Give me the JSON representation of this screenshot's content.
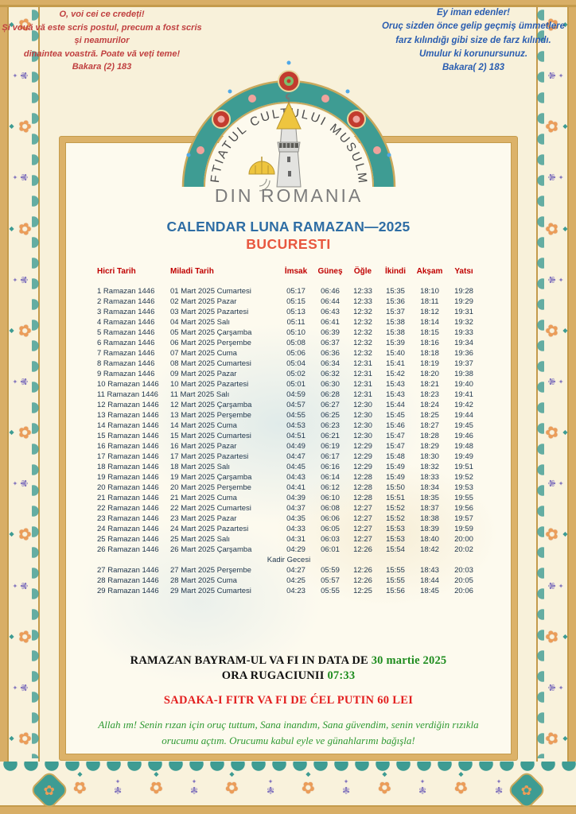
{
  "quotes": {
    "left": {
      "lines": [
        "O, voi cei ce credeți!",
        "Și vouă vă este scris postul, precum a fost scris",
        "și neamurilor",
        "dinaintea voastră. Poate vă veți teme!",
        "Bakara (2) 183"
      ]
    },
    "right": {
      "lines": [
        "Ey iman edenler!",
        "Oruç sizden önce gelip geçmiş ümmetlere",
        "farz kılındığı gibi size de farz kılındı.",
        "Umulur ki korunursunuz.",
        "Bakara( 2) 183"
      ]
    }
  },
  "header": {
    "arc_text": "MUFTIATUL CULTULUI MUSULMAN",
    "org_subtitle": "DIN ROMANIA",
    "title": "CALENDAR LUNA RAMAZAN—2025",
    "city": "BUCURESTI"
  },
  "table": {
    "columns": [
      "Hicri Tarih",
      "Miladi Tarih",
      "İmsak",
      "Güneş",
      "Öğle",
      "İkindi",
      "Akşam",
      "Yatsı"
    ],
    "kadir_note": "Kadir Gecesi",
    "kadir_after_row": 26,
    "rows": [
      [
        "1 Ramazan 1446",
        "01 Mart 2025 Cumartesi",
        "05:17",
        "06:46",
        "12:33",
        "15:35",
        "18:10",
        "19:28"
      ],
      [
        "2 Ramazan 1446",
        "02 Mart 2025 Pazar",
        "05:15",
        "06:44",
        "12:33",
        "15:36",
        "18:11",
        "19:29"
      ],
      [
        "3 Ramazan 1446",
        "03 Mart 2025 Pazartesi",
        "05:13",
        "06:43",
        "12:32",
        "15:37",
        "18:12",
        "19:31"
      ],
      [
        "4 Ramazan 1446",
        "04 Mart 2025 Salı",
        "05:11",
        "06:41",
        "12:32",
        "15:38",
        "18:14",
        "19:32"
      ],
      [
        "5 Ramazan 1446",
        "05 Mart 2025 Çarşamba",
        "05:10",
        "06:39",
        "12:32",
        "15:38",
        "18:15",
        "19:33"
      ],
      [
        "6 Ramazan 1446",
        "06 Mart 2025 Perşembe",
        "05:08",
        "06:37",
        "12:32",
        "15:39",
        "18:16",
        "19:34"
      ],
      [
        "7 Ramazan 1446",
        "07 Mart 2025 Cuma",
        "05:06",
        "06:36",
        "12:32",
        "15:40",
        "18:18",
        "19:36"
      ],
      [
        "8 Ramazan 1446",
        "08 Mart 2025 Cumartesi",
        "05:04",
        "06:34",
        "12:31",
        "15:41",
        "18:19",
        "19:37"
      ],
      [
        "9 Ramazan 1446",
        "09 Mart 2025 Pazar",
        "05:02",
        "06:32",
        "12:31",
        "15:42",
        "18:20",
        "19:38"
      ],
      [
        "10 Ramazan 1446",
        "10 Mart 2025 Pazartesi",
        "05:01",
        "06:30",
        "12:31",
        "15:43",
        "18:21",
        "19:40"
      ],
      [
        "11 Ramazan 1446",
        "11 Mart 2025 Salı",
        "04:59",
        "06:28",
        "12:31",
        "15:43",
        "18:23",
        "19:41"
      ],
      [
        "12 Ramazan 1446",
        "12 Mart 2025 Çarşamba",
        "04:57",
        "06:27",
        "12:30",
        "15:44",
        "18:24",
        "19:42"
      ],
      [
        "13 Ramazan 1446",
        "13 Mart 2025 Perşembe",
        "04:55",
        "06:25",
        "12:30",
        "15:45",
        "18:25",
        "19:44"
      ],
      [
        "14 Ramazan 1446",
        "14 Mart 2025 Cuma",
        "04:53",
        "06:23",
        "12:30",
        "15:46",
        "18:27",
        "19:45"
      ],
      [
        "15 Ramazan 1446",
        "15 Mart 2025 Cumartesi",
        "04:51",
        "06:21",
        "12:30",
        "15:47",
        "18:28",
        "19:46"
      ],
      [
        "16 Ramazan 1446",
        "16 Mart 2025 Pazar",
        "04:49",
        "06:19",
        "12:29",
        "15:47",
        "18:29",
        "19:48"
      ],
      [
        "17 Ramazan 1446",
        "17 Mart 2025 Pazartesi",
        "04:47",
        "06:17",
        "12:29",
        "15:48",
        "18:30",
        "19:49"
      ],
      [
        "18 Ramazan 1446",
        "18 Mart 2025 Salı",
        "04:45",
        "06:16",
        "12:29",
        "15:49",
        "18:32",
        "19:51"
      ],
      [
        "19 Ramazan 1446",
        "19 Mart 2025 Çarşamba",
        "04:43",
        "06:14",
        "12:28",
        "15:49",
        "18:33",
        "19:52"
      ],
      [
        "20 Ramazan 1446",
        "20 Mart 2025 Perşembe",
        "04:41",
        "06:12",
        "12:28",
        "15:50",
        "18:34",
        "19:53"
      ],
      [
        "21 Ramazan 1446",
        "21 Mart 2025 Cuma",
        "04:39",
        "06:10",
        "12:28",
        "15:51",
        "18:35",
        "19:55"
      ],
      [
        "22 Ramazan 1446",
        "22 Mart 2025 Cumartesi",
        "04:37",
        "06:08",
        "12:27",
        "15:52",
        "18:37",
        "19:56"
      ],
      [
        "23 Ramazan 1446",
        "23 Mart 2025 Pazar",
        "04:35",
        "06:06",
        "12:27",
        "15:52",
        "18:38",
        "19:57"
      ],
      [
        "24 Ramazan 1446",
        "24 Mart 2025 Pazartesi",
        "04:33",
        "06:05",
        "12:27",
        "15:53",
        "18:39",
        "19:59"
      ],
      [
        "25 Ramazan 1446",
        "25 Mart 2025 Salı",
        "04:31",
        "06:03",
        "12:27",
        "15:53",
        "18:40",
        "20:00"
      ],
      [
        "26 Ramazan 1446",
        "26 Mart 2025 Çarşamba",
        "04:29",
        "06:01",
        "12:26",
        "15:54",
        "18:42",
        "20:02"
      ],
      [
        "27 Ramazan 1446",
        "27 Mart 2025 Perşembe",
        "04:27",
        "05:59",
        "12:26",
        "15:55",
        "18:43",
        "20:03"
      ],
      [
        "28 Ramazan 1446",
        "28 Mart 2025 Cuma",
        "04:25",
        "05:57",
        "12:26",
        "15:55",
        "18:44",
        "20:05"
      ],
      [
        "29 Ramazan 1446",
        "29 Mart 2025 Cumartesi",
        "04:23",
        "05:55",
        "12:25",
        "15:56",
        "18:45",
        "20:06"
      ]
    ]
  },
  "footer": {
    "bayram_text": "RAMAZAN BAYRAM-UL VA FI IN DATA DE ",
    "bayram_date": "30 martie 2025",
    "ora_text": "ORA RUGACIUNII ",
    "ora_time": "07:33",
    "sadaka": "SADAKA-I FITR VA FI DE ĆEL PUTIN 60 LEI",
    "dua_line1": "Allah ım! Senin rızan için oruç tuttum, Sana inandım, Sana güvendim, senin verdiğin rızıkla",
    "dua_line2": "orucumu açtım. Orucumu kabul eyle ve günahlarımı bağışla!"
  },
  "colors": {
    "page_bg": "#F8F1DA",
    "frame_gold": "#D8AE66",
    "frame_teal": "#3E9C93",
    "motif_orange": "#EC9D58",
    "motif_purple": "#8375BD",
    "quote_left_red": "#C04040",
    "quote_right_blue": "#2A5DB0",
    "title_blue": "#2E6DA4",
    "city_red": "#E8573F",
    "table_header_red": "#C00000",
    "table_text": "#22384E",
    "footer_green": "#1E8C1E",
    "sadaka_red": "#E31E1E",
    "medallion_red": "#C23B2E",
    "dome_gold": "#EEC53F"
  }
}
